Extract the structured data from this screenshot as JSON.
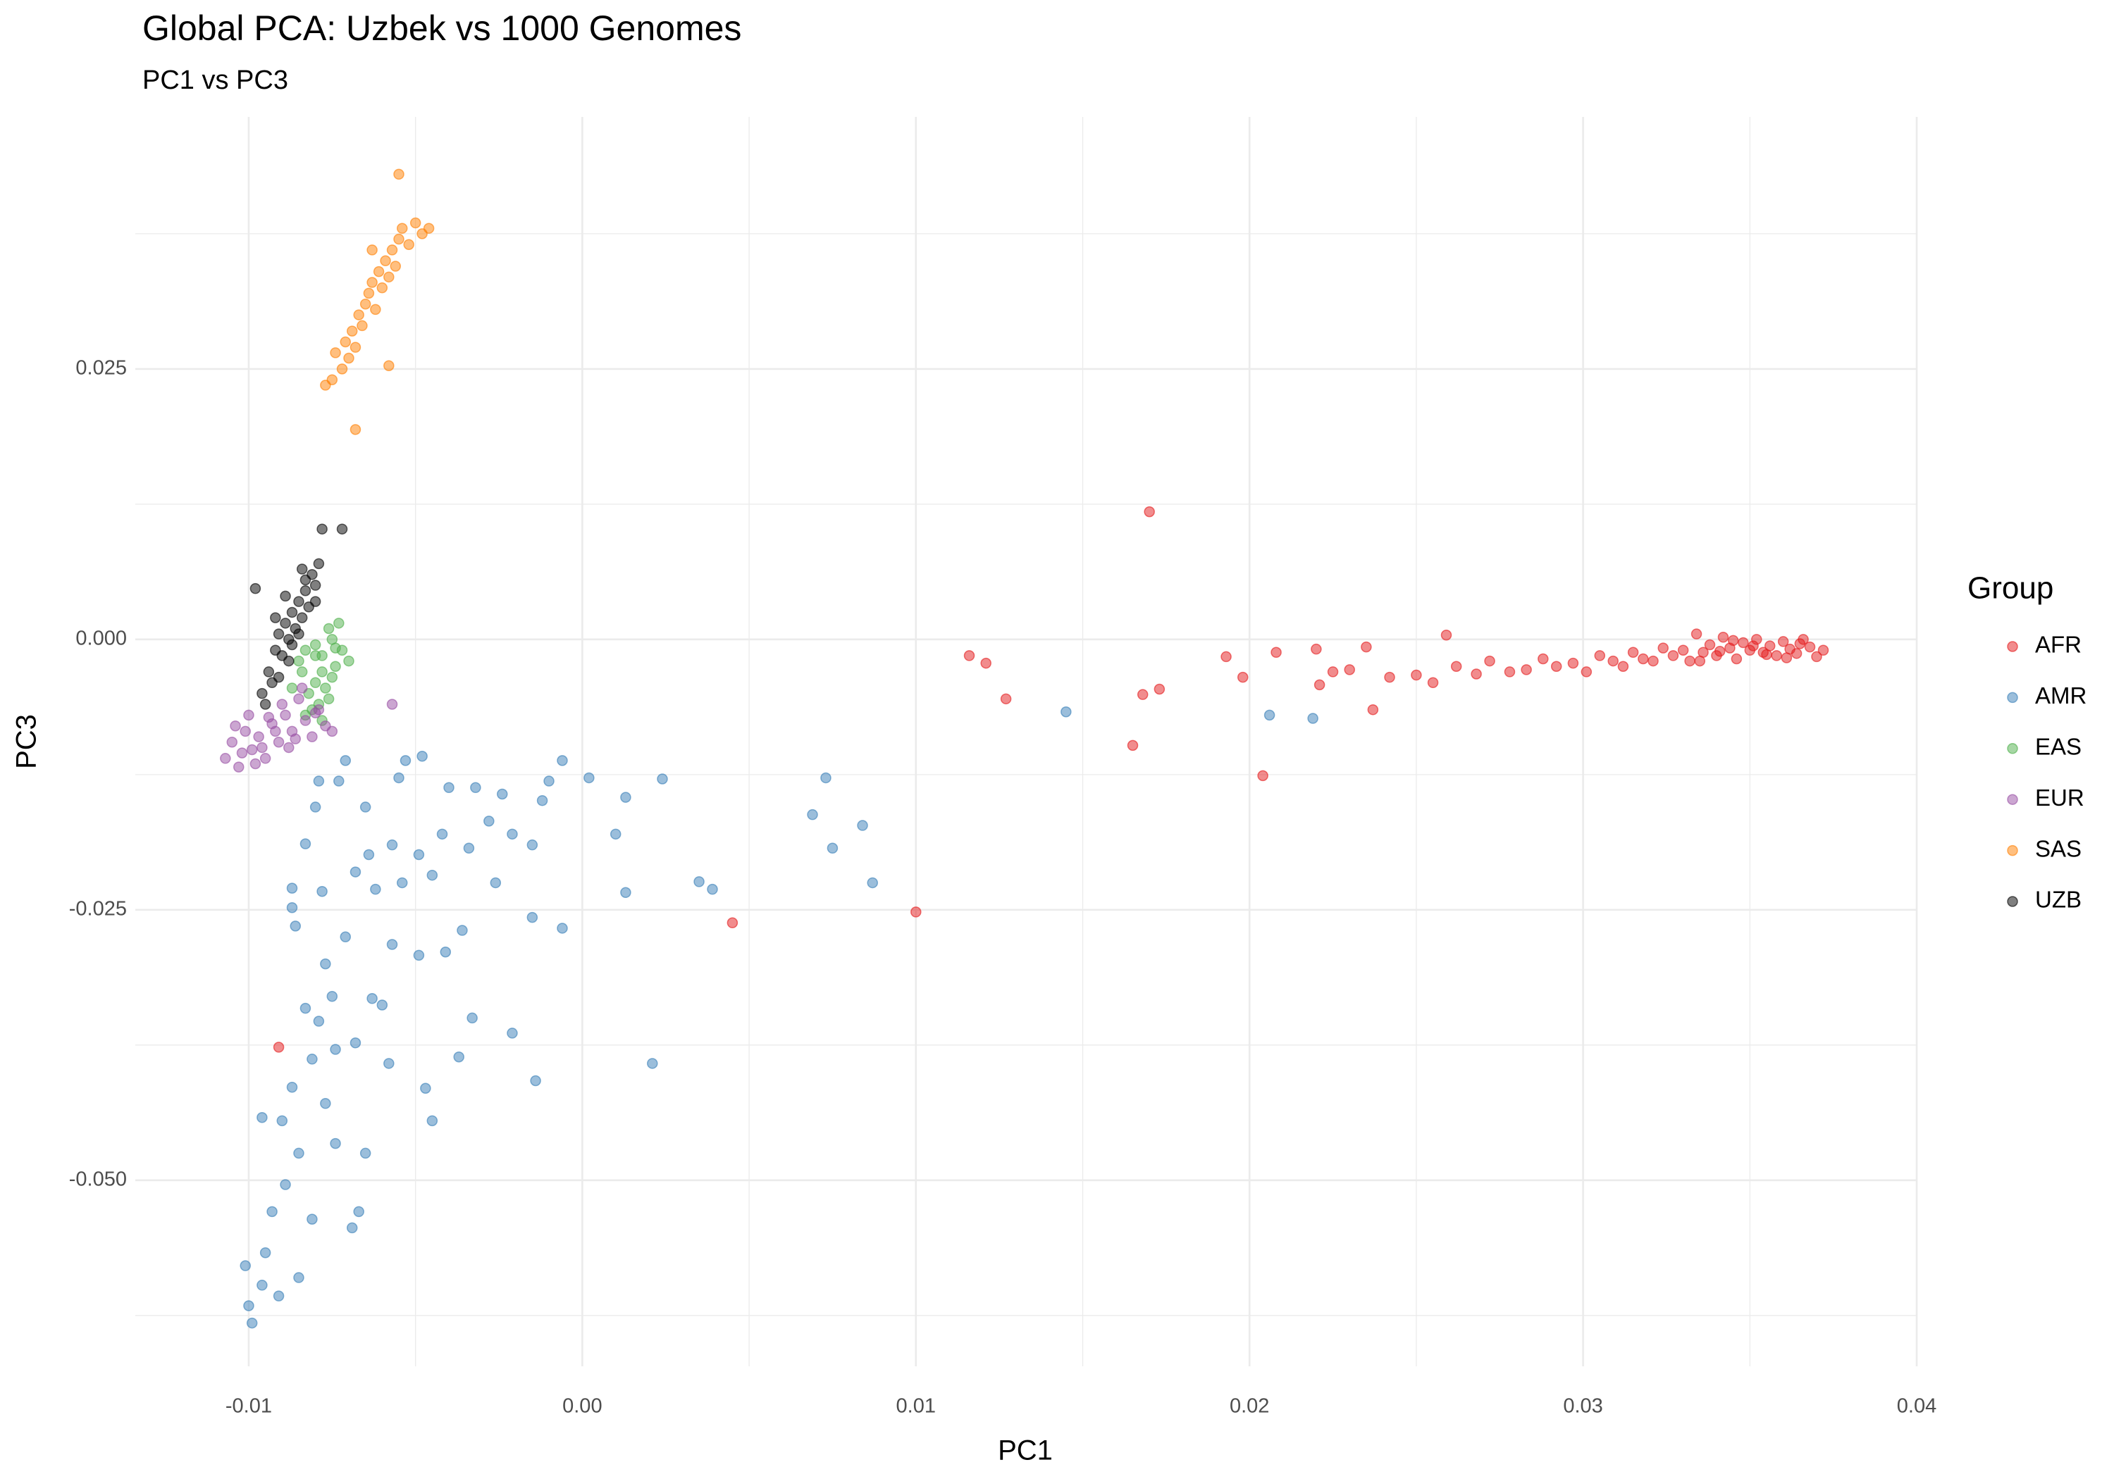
{
  "chart_data": {
    "type": "scatter",
    "title": "Global PCA: Uzbek vs 1000 Genomes",
    "subtitle": "PC1 vs PC3",
    "x_label": "PC1",
    "y_label": "PC3",
    "legend_title": "Group",
    "legend_position": "right",
    "grid": true,
    "xlim": [
      -0.0134,
      0.04
    ],
    "ylim": [
      -0.0672,
      0.0483
    ],
    "xticks": [
      -0.01,
      {
        "value": 0,
        "label": "0.00"
      },
      0.01,
      0.02,
      0.03,
      0.04
    ],
    "yticks": [
      0.025,
      {
        "value": 0,
        "label": "0.000"
      },
      -0.025,
      {
        "value": -0.05,
        "label": "-0.050"
      }
    ],
    "xminor": [
      -0.005,
      0.005,
      0.015,
      0.025,
      0.035
    ],
    "yminor": [
      0.0375,
      0.0125,
      -0.0125,
      -0.0375,
      -0.0625
    ],
    "series": [
      {
        "name": "AFR",
        "color": "#e41a1c",
        "x": [
          0.0116,
          0.0121,
          0.0127,
          0.017,
          0.0165,
          0.0168,
          0.0173,
          0.0193,
          0.0198,
          0.0204,
          0.0208,
          0.022,
          0.0221,
          0.0235,
          0.0237,
          0.0259,
          0.0045,
          0.01,
          -0.0091,
          0.0225,
          0.023,
          0.0242,
          0.025,
          0.0255,
          0.0262,
          0.0268,
          0.0272,
          0.0278,
          0.0283,
          0.0288,
          0.0292,
          0.0297,
          0.0301,
          0.0305,
          0.0309,
          0.0312,
          0.0315,
          0.0318,
          0.0321,
          0.0324,
          0.0327,
          0.033,
          0.0332,
          0.0334,
          0.0336,
          0.0338,
          0.034,
          0.0342,
          0.0344,
          0.0346,
          0.0348,
          0.035,
          0.0352,
          0.0354,
          0.0356,
          0.0358,
          0.036,
          0.0362,
          0.0364,
          0.0366,
          0.0368,
          0.037,
          0.0372,
          0.0335,
          0.0345,
          0.0355,
          0.0365,
          0.0341,
          0.0351,
          0.0361
        ],
        "y": [
          -0.0015,
          -0.0022,
          -0.0055,
          0.0118,
          -0.0098,
          -0.0051,
          -0.0046,
          -0.0016,
          -0.0035,
          -0.0126,
          -0.0012,
          -0.0009,
          -0.0042,
          -0.0007,
          -0.0065,
          0.0004,
          -0.0262,
          -0.0252,
          -0.0377,
          -0.003,
          -0.0028,
          -0.0035,
          -0.0033,
          -0.004,
          -0.0025,
          -0.0032,
          -0.002,
          -0.003,
          -0.0028,
          -0.0018,
          -0.0025,
          -0.0022,
          -0.003,
          -0.0015,
          -0.002,
          -0.0025,
          -0.0012,
          -0.0018,
          -0.002,
          -0.0008,
          -0.0015,
          -0.001,
          -0.002,
          0.0005,
          -0.0012,
          -0.0005,
          -0.0015,
          0.0002,
          -0.0008,
          -0.0018,
          -0.0003,
          -0.001,
          0.0,
          -0.0012,
          -0.0006,
          -0.0015,
          -0.0002,
          -0.0009,
          -0.0013,
          0.0,
          -0.0007,
          -0.0016,
          -0.001,
          -0.002,
          -0.0001,
          -0.0014,
          -0.0004,
          -0.0011,
          -0.0006,
          -0.0017
        ]
      },
      {
        "name": "AMR",
        "color": "#377eb8",
        "x": [
          0.0145,
          0.0206,
          0.0219,
          0.0073,
          0.0069,
          0.0084,
          0.0075,
          0.0087,
          0.0035,
          0.0039,
          0.0024,
          0.0013,
          0.0002,
          -0.0006,
          0.001,
          0.0013,
          0.0021,
          -0.0006,
          -0.0015,
          -0.0014,
          -0.0021,
          -0.0033,
          -0.0037,
          -0.0045,
          -0.0047,
          -0.0036,
          -0.0041,
          -0.0049,
          -0.0057,
          -0.0058,
          -0.0065,
          -0.0067,
          -0.0069,
          -0.0074,
          -0.0081,
          -0.0085,
          -0.0095,
          -0.0096,
          -0.01,
          -0.0099,
          -0.0101,
          -0.0091,
          -0.0093,
          -0.0089,
          -0.0085,
          -0.0096,
          -0.009,
          -0.0087,
          -0.0077,
          -0.0081,
          -0.0074,
          -0.0068,
          -0.0079,
          -0.0083,
          -0.0075,
          -0.0063,
          -0.0077,
          -0.0071,
          -0.0086,
          -0.0078,
          -0.0087,
          -0.0068,
          -0.0062,
          -0.0054,
          -0.0045,
          -0.0064,
          -0.0057,
          -0.0049,
          -0.0042,
          -0.0034,
          -0.0026,
          -0.0021,
          -0.0015,
          -0.0083,
          -0.008,
          -0.0073,
          -0.0079,
          -0.0065,
          -0.0055,
          -0.0053,
          -0.0048,
          -0.004,
          -0.0032,
          -0.0024,
          -0.0012,
          -0.001,
          -0.0028,
          -0.0071,
          -0.0087,
          -0.006
        ],
        "y": [
          -0.0067,
          -0.007,
          -0.0073,
          -0.0128,
          -0.0162,
          -0.0172,
          -0.0193,
          -0.0225,
          -0.0224,
          -0.0231,
          -0.0129,
          -0.0146,
          -0.0128,
          -0.0112,
          -0.018,
          -0.0234,
          -0.0392,
          -0.0267,
          -0.0257,
          -0.0408,
          -0.0364,
          -0.035,
          -0.0386,
          -0.0445,
          -0.0415,
          -0.0269,
          -0.0289,
          -0.0292,
          -0.0282,
          -0.0392,
          -0.0475,
          -0.0529,
          -0.0544,
          -0.0466,
          -0.0536,
          -0.059,
          -0.0567,
          -0.0597,
          -0.0616,
          -0.0632,
          -0.0579,
          -0.0607,
          -0.0529,
          -0.0504,
          -0.0475,
          -0.0442,
          -0.0445,
          -0.0414,
          -0.0429,
          -0.0388,
          -0.0379,
          -0.0373,
          -0.0353,
          -0.0341,
          -0.033,
          -0.0332,
          -0.03,
          -0.0275,
          -0.0265,
          -0.0233,
          -0.023,
          -0.0215,
          -0.0231,
          -0.0225,
          -0.0218,
          -0.0199,
          -0.019,
          -0.0199,
          -0.018,
          -0.0193,
          -0.0225,
          -0.018,
          -0.019,
          -0.0189,
          -0.0155,
          -0.0131,
          -0.0131,
          -0.0155,
          -0.0128,
          -0.0112,
          -0.0108,
          -0.0137,
          -0.0137,
          -0.0143,
          -0.0149,
          -0.0131,
          -0.0168,
          -0.0112,
          -0.0248,
          -0.0338
        ]
      },
      {
        "name": "EAS",
        "color": "#4daf4a",
        "x": [
          -0.0085,
          -0.0083,
          -0.008,
          -0.0078,
          -0.0076,
          -0.0074,
          -0.0072,
          -0.007,
          -0.008,
          -0.0078,
          -0.0075,
          -0.0073,
          -0.0082,
          -0.0079,
          -0.0077,
          -0.0081,
          -0.0076,
          -0.0084,
          -0.0078,
          -0.0074,
          -0.008,
          -0.0087,
          -0.0083,
          -0.0075
        ],
        "y": [
          -0.002,
          -0.001,
          -0.0005,
          -0.0015,
          0.001,
          -0.0025,
          -0.001,
          -0.002,
          -0.004,
          -0.003,
          -0.0035,
          0.0015,
          -0.005,
          -0.006,
          -0.0045,
          -0.0065,
          -0.0055,
          -0.003,
          -0.0075,
          -0.0008,
          -0.0015,
          -0.0045,
          -0.007,
          0.0
        ]
      },
      {
        "name": "EUR",
        "color": "#984ea3",
        "x": [
          -0.0107,
          -0.0105,
          -0.0103,
          -0.0101,
          -0.0099,
          -0.0097,
          -0.0095,
          -0.0093,
          -0.0091,
          -0.0089,
          -0.0087,
          -0.0085,
          -0.0083,
          -0.0081,
          -0.0079,
          -0.0077,
          -0.0075,
          -0.0104,
          -0.01,
          -0.0096,
          -0.0092,
          -0.0088,
          -0.0084,
          -0.008,
          -0.009,
          -0.0086,
          -0.0057,
          -0.0098,
          -0.0102,
          -0.0094
        ],
        "y": [
          -0.011,
          -0.0095,
          -0.0118,
          -0.0085,
          -0.0102,
          -0.009,
          -0.011,
          -0.0078,
          -0.0095,
          -0.007,
          -0.0085,
          -0.0055,
          -0.0075,
          -0.009,
          -0.0065,
          -0.008,
          -0.0085,
          -0.008,
          -0.007,
          -0.01,
          -0.0085,
          -0.01,
          -0.0045,
          -0.0068,
          -0.006,
          -0.0092,
          -0.006,
          -0.0115,
          -0.0105,
          -0.0072
        ]
      },
      {
        "name": "SAS",
        "color": "#ff7f00",
        "x": [
          -0.0077,
          -0.0075,
          -0.0074,
          -0.0072,
          -0.0071,
          -0.007,
          -0.0069,
          -0.0068,
          -0.0067,
          -0.0066,
          -0.0065,
          -0.0064,
          -0.0063,
          -0.0062,
          -0.0061,
          -0.006,
          -0.0059,
          -0.0058,
          -0.0057,
          -0.0056,
          -0.0055,
          -0.0054,
          -0.0052,
          -0.005,
          -0.0048,
          -0.0046,
          -0.0068,
          -0.0058,
          -0.0055,
          -0.0063
        ],
        "y": [
          0.0235,
          0.024,
          0.0265,
          0.025,
          0.0275,
          0.026,
          0.0285,
          0.027,
          0.03,
          0.029,
          0.031,
          0.032,
          0.033,
          0.0305,
          0.034,
          0.0325,
          0.035,
          0.0335,
          0.036,
          0.0345,
          0.037,
          0.038,
          0.0365,
          0.0385,
          0.0375,
          0.038,
          0.0194,
          0.0253,
          0.043,
          0.036
        ]
      },
      {
        "name": "UZB",
        "color": "#000000",
        "x": [
          -0.0098,
          -0.0096,
          -0.0094,
          -0.0093,
          -0.0092,
          -0.0091,
          -0.009,
          -0.0089,
          -0.0088,
          -0.0087,
          -0.0086,
          -0.0085,
          -0.0084,
          -0.0083,
          -0.0082,
          -0.0081,
          -0.008,
          -0.0079,
          -0.0078,
          -0.0072,
          -0.0095,
          -0.0091,
          -0.0088,
          -0.0085,
          -0.0083,
          -0.0089,
          -0.0087,
          -0.0092,
          -0.0084,
          -0.008
        ],
        "y": [
          0.0047,
          -0.005,
          -0.003,
          -0.004,
          -0.001,
          0.0005,
          -0.0015,
          0.0015,
          0.0,
          0.0025,
          0.001,
          0.0035,
          0.002,
          0.0045,
          0.003,
          0.006,
          0.005,
          0.007,
          0.0102,
          0.0102,
          -0.006,
          -0.0035,
          -0.002,
          0.0005,
          0.0055,
          0.004,
          -0.0005,
          0.002,
          0.0065,
          0.0035
        ]
      }
    ]
  }
}
